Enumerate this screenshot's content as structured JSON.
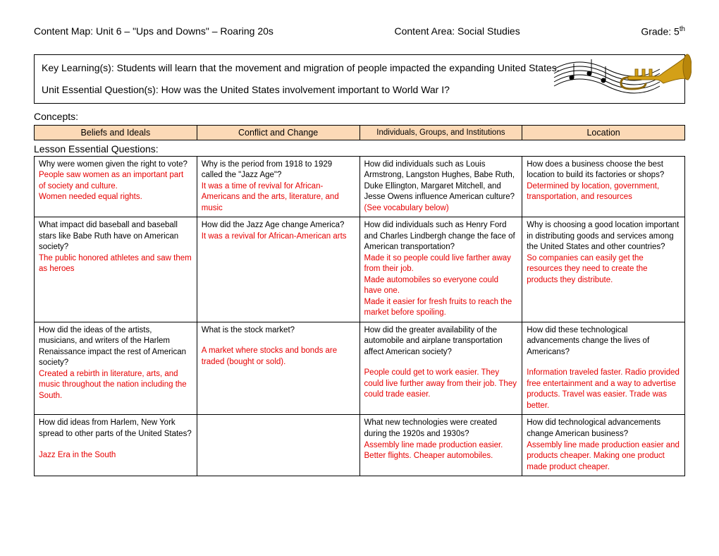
{
  "header": {
    "left": "Content Map: Unit 6 – \"Ups and Downs\" – Roaring 20s",
    "center": "Content Area: Social Studies",
    "right_prefix": "Grade: 5",
    "right_suffix": "th"
  },
  "keybox": {
    "line1": "Key Learning(s): Students will learn that the movement and migration of people impacted the expanding United States.",
    "line2": "Unit Essential Question(s): How was the United States involvement important to World War I?"
  },
  "concepts_label": "Concepts:",
  "concept_headers": {
    "c1": "Beliefs and Ideals",
    "c2": "Conflict and Change",
    "c3": "Individuals, Groups, and Institutions",
    "c4": "Location"
  },
  "leq_label": "Lesson Essential Questions:",
  "rows": [
    {
      "c1q": "Why were women given the right to vote?",
      "c1a": "People saw women as an important part of society and culture.\nWomen needed equal rights.",
      "c2q": "Why is the period from 1918 to 1929 called the \"Jazz Age\"?",
      "c2a": "It was a time of revival for African-Americans and the arts, literature, and music",
      "c3q": "How did individuals such as Louis Armstrong, Langston Hughes, Babe Ruth, Duke Ellington, Margaret Mitchell, and Jesse Owens influence American culture?",
      "c3a": "(See vocabulary below)",
      "c4q": "How does a business choose the best location to build its factories or shops?",
      "c4a": "Determined by location, government, transportation, and resources"
    },
    {
      "c1q": "What impact did baseball and baseball stars like Babe Ruth have on American society?",
      "c1a": "The public honored athletes and saw them as heroes",
      "c2q": "How did the Jazz Age change America?",
      "c2a": "It was a revival for African-American arts",
      "c3q": "How did individuals such as Henry Ford and Charles Lindbergh change the face of American transportation?",
      "c3a": "Made it so people could live farther away from their job.\nMade automobiles so everyone could have one.\nMade it easier for fresh fruits to reach the market before spoiling.",
      "c4q": "Why is choosing a good location important in distributing goods and services among the United States and other countries?",
      "c4a": "So companies can easily get the resources they need to create the products they distribute."
    },
    {
      "c1q": "How did the ideas of the artists, musicians, and writers of the Harlem Renaissance impact the rest of American society?",
      "c1a": "Created a rebirth in literature, arts, and music throughout the nation including the South.",
      "c2q": "What is the stock market?",
      "c2a": "A market where stocks and bonds are traded (bought or sold).",
      "c3q": "How did the greater availability of the automobile and airplane transportation affect American society?",
      "c3a": "People could get to work easier.  They could live further away from their job.  They could trade easier.",
      "c4q": "How did these technological advancements change the lives of Americans?",
      "c4a": "Information traveled faster.  Radio provided free entertainment and a way to advertise products.  Travel was easier.  Trade was better."
    },
    {
      "c1q": "How did ideas from Harlem, New York spread to other parts of the United States?",
      "c1a": "Jazz Era in the South",
      "c2q": "",
      "c2a": "",
      "c3q": "What new technologies were created during the 1920s and 1930s?",
      "c3a": "Assembly line made production easier.  Better flights.  Cheaper automobiles.",
      "c4q": "How did technological advancements change American business?",
      "c4a": "Assembly line made production easier and products cheaper.  Making one product made product cheaper."
    }
  ],
  "colors": {
    "header_bg": "#fcd9b6",
    "answer_text": "#e60000"
  }
}
